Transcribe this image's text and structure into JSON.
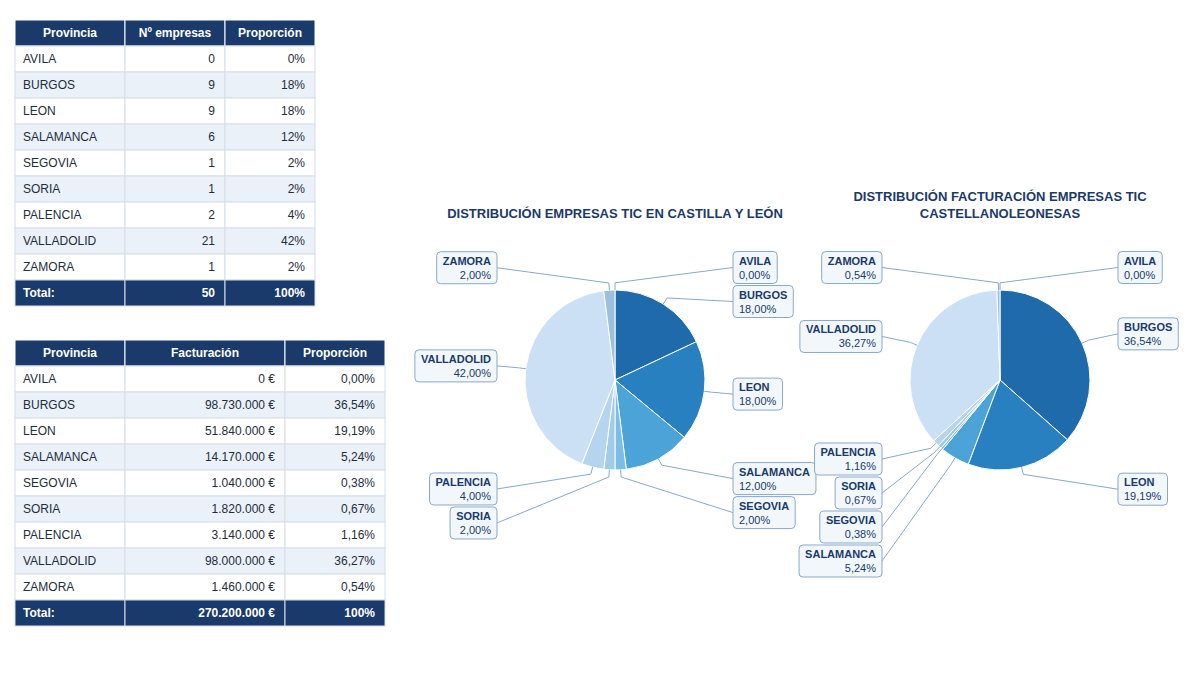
{
  "chart_data": [
    {
      "type": "table",
      "x_label": "Provincia",
      "color": "#1a3a6b",
      "categories": [
        "AVILA",
        "BURGOS",
        "LEON",
        "SALAMANCA",
        "SEGOVIA",
        "SORIA",
        "PALENCIA",
        "VALLADOLID",
        "ZAMORA",
        "Total:"
      ],
      "series": [
        {
          "name": "Nº empresas",
          "values": [
            0,
            9,
            9,
            6,
            1,
            1,
            2,
            21,
            1,
            50
          ]
        },
        {
          "name": "Proporción",
          "values": [
            0,
            18,
            18,
            12,
            2,
            2,
            4,
            42,
            2,
            100
          ],
          "value_labels": [
            "0%",
            "18%",
            "18%",
            "12%",
            "2%",
            "2%",
            "4%",
            "42%",
            "2%",
            "100%"
          ]
        }
      ]
    },
    {
      "type": "pie",
      "title": "DISTRIBUCIÓN EMPRESAS TIC EN CASTILLA Y LEÓN",
      "categories": [
        "AVILA",
        "BURGOS",
        "LEON",
        "SALAMANCA",
        "SEGOVIA",
        "SORIA",
        "PALENCIA",
        "VALLADOLID",
        "ZAMORA"
      ],
      "values": [
        0.001,
        18.0,
        18.0,
        12.0,
        2.0,
        2.0,
        4.0,
        42.0,
        2.0
      ],
      "value_labels": [
        "0,00%",
        "18,00%",
        "18,00%",
        "12,00%",
        "2,00%",
        "2,00%",
        "4,00%",
        "42,00%",
        "2,00%"
      ],
      "colors": [
        "#1e3f70",
        "#1e6aaa",
        "#2980c0",
        "#4ba3d8",
        "#7bbce8",
        "#a0cce8",
        "#b5d5ee",
        "#cce0f5",
        "#9ac0dc"
      ],
      "data_labels": true
    },
    {
      "type": "table",
      "x_label": "Provincia",
      "color": "#1a3a6b",
      "categories": [
        "AVILA",
        "BURGOS",
        "LEON",
        "SALAMANCA",
        "SEGOVIA",
        "SORIA",
        "PALENCIA",
        "VALLADOLID",
        "ZAMORA",
        "Total:"
      ],
      "series": [
        {
          "name": "Facturación",
          "values": [
            0,
            98730000,
            51840000,
            14170000,
            1040000,
            1820000,
            3140000,
            98000000,
            1460000,
            270200000
          ],
          "value_labels": [
            "0 €",
            "98.730.000 €",
            "51.840.000 €",
            "14.170.000 €",
            "1.040.000 €",
            "1.820.000 €",
            "3.140.000 €",
            "98.000.000 €",
            "1.460.000 €",
            "270.200.000 €"
          ]
        },
        {
          "name": "Proporción",
          "values": [
            0,
            36.54,
            19.19,
            5.24,
            0.38,
            0.67,
            1.16,
            36.27,
            0.54,
            100
          ],
          "value_labels": [
            "0,00%",
            "36,54%",
            "19,19%",
            "5,24%",
            "0,38%",
            "0,67%",
            "1,16%",
            "36,27%",
            "0,54%",
            "100%"
          ]
        }
      ]
    },
    {
      "type": "pie",
      "title": "DISTRIBUCIÓN FACTURACIÓN EMPRESAS TIC\nCASTELLANOLEONESAS",
      "categories": [
        "AVILA",
        "BURGOS",
        "LEON",
        "SALAMANCA",
        "SEGOVIA",
        "SORIA",
        "PALENCIA",
        "VALLADOLID",
        "ZAMORA"
      ],
      "values": [
        0.001,
        36.54,
        19.19,
        5.24,
        0.38,
        0.67,
        1.16,
        36.27,
        0.54
      ],
      "value_labels": [
        "0,00%",
        "36,54%",
        "19,19%",
        "5,24%",
        "0,38%",
        "0,67%",
        "1,16%",
        "36,27%",
        "0,54%"
      ],
      "colors": [
        "#1e3f70",
        "#1e6aaa",
        "#2980c0",
        "#4ba3d8",
        "#7bbce8",
        "#a0cce8",
        "#b5d5ee",
        "#cce0f5",
        "#9ac0dc"
      ],
      "data_labels": true
    }
  ]
}
